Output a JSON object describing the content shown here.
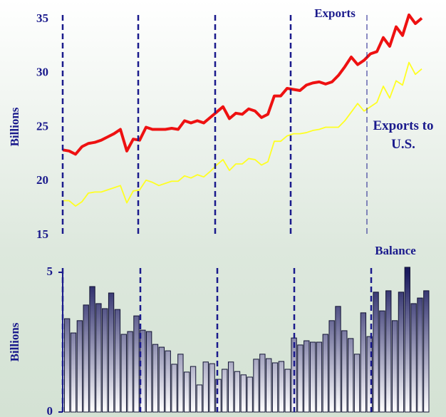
{
  "chart_data": [
    {
      "type": "line",
      "ylabel": "Billions",
      "ylim": [
        15,
        35
      ],
      "yticks": [
        15,
        20,
        25,
        30,
        35
      ],
      "series": [
        {
          "name": "Exports",
          "color": "#ee1111",
          "values": [
            22.9,
            22.8,
            22.5,
            23.2,
            23.5,
            23.6,
            23.8,
            24.1,
            24.4,
            24.8,
            22.8,
            23.9,
            23.8,
            25.0,
            24.8,
            24.8,
            24.8,
            24.9,
            24.8,
            25.6,
            25.4,
            25.6,
            25.4,
            25.9,
            26.4,
            26.9,
            25.8,
            26.3,
            26.2,
            26.7,
            26.5,
            25.9,
            26.2,
            27.9,
            27.9,
            28.6,
            28.5,
            28.4,
            28.9,
            29.1,
            29.2,
            29.0,
            29.2,
            29.8,
            30.6,
            31.5,
            30.8,
            31.2,
            31.8,
            32.0,
            33.3,
            32.5,
            34.3,
            33.5,
            35.4,
            34.6,
            35.1
          ]
        },
        {
          "name": "Exports to U.S.",
          "color": "#ffff22",
          "values": [
            18.2,
            18.2,
            17.7,
            18.1,
            18.9,
            19.0,
            19.0,
            19.2,
            19.4,
            19.6,
            18.0,
            19.1,
            19.2,
            20.1,
            19.9,
            19.6,
            19.8,
            20.0,
            20.0,
            20.5,
            20.3,
            20.6,
            20.4,
            20.9,
            21.5,
            22.0,
            21.0,
            21.6,
            21.6,
            22.1,
            22.0,
            21.5,
            21.8,
            23.7,
            23.7,
            24.2,
            24.4,
            24.4,
            24.5,
            24.7,
            24.8,
            25.0,
            25.0,
            25.0,
            25.6,
            26.4,
            27.2,
            26.5,
            26.9,
            27.3,
            28.8,
            27.7,
            29.3,
            28.9,
            31.0,
            29.9,
            30.4
          ]
        }
      ]
    },
    {
      "type": "bar",
      "ylabel": "Billions",
      "ylim": [
        0,
        5
      ],
      "yticks": [
        0,
        5
      ],
      "series": [
        {
          "name": "Balance",
          "color": "#1a1a5e",
          "values": [
            3.34,
            2.83,
            3.27,
            3.83,
            4.49,
            3.88,
            3.7,
            4.26,
            3.67,
            2.78,
            2.88,
            3.44,
            2.93,
            2.88,
            2.42,
            2.32,
            2.19,
            1.71,
            2.07,
            1.43,
            1.63,
            0.97,
            1.79,
            1.73,
            1.17,
            1.53,
            1.79,
            1.45,
            1.33,
            1.25,
            1.89,
            2.07,
            1.91,
            1.76,
            1.81,
            1.53,
            2.65,
            2.4,
            2.55,
            2.5,
            2.5,
            2.78,
            3.27,
            3.78,
            2.91,
            2.63,
            2.07,
            3.55,
            2.7,
            4.29,
            3.62,
            4.34,
            3.27,
            4.29,
            5.18,
            3.88,
            4.08,
            4.34
          ]
        }
      ]
    }
  ]
}
